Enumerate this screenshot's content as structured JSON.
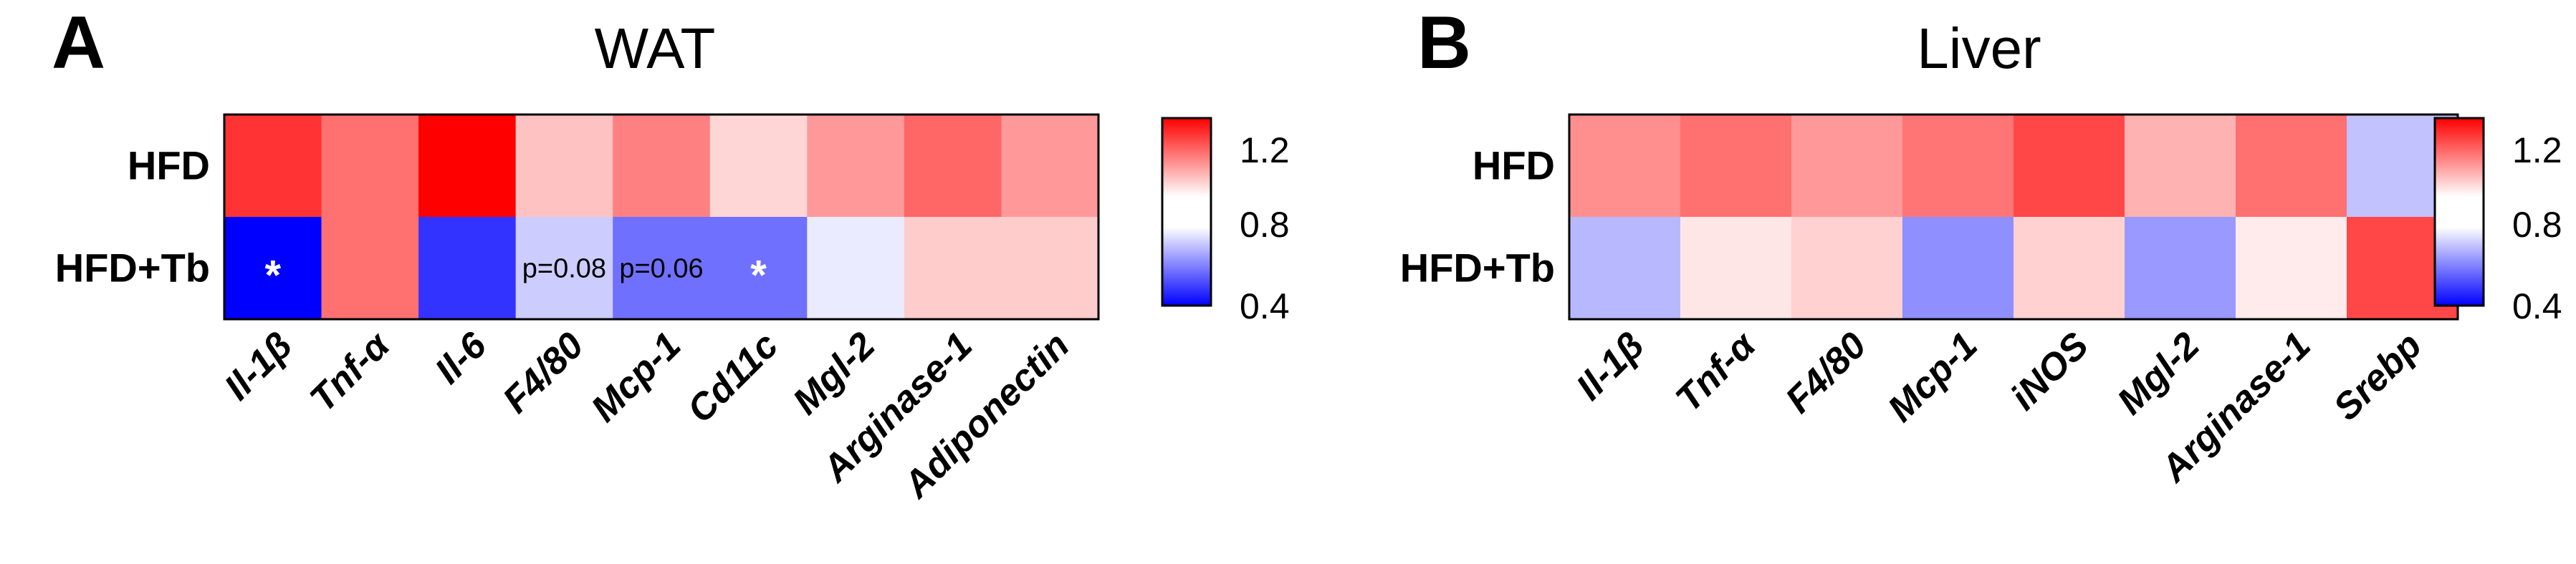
{
  "panels": [
    {
      "letter": "A",
      "title": "WAT"
    },
    {
      "letter": "B",
      "title": "Liver"
    }
  ],
  "colorscale": {
    "low_color": "#0000ff",
    "mid_color": "#ffffff",
    "high_color": "#ff0000",
    "min": 0.4,
    "mid": 0.9,
    "max": 1.4,
    "ticks": [
      "1.2",
      "0.8",
      "0.4"
    ]
  },
  "chart_data": [
    {
      "type": "heatmap",
      "title": "WAT",
      "rows": [
        "HFD",
        "HFD+Tb"
      ],
      "columns": [
        "Il-1β",
        "Tnf-α",
        "Il-6",
        "F4/80",
        "Mcp-1",
        "Cd11c",
        "Mgl-2",
        "Arginase-1",
        "Adiponectin"
      ],
      "values": [
        [
          1.3,
          1.18,
          1.4,
          1.02,
          1.15,
          0.98,
          1.1,
          1.2,
          1.1
        ],
        [
          0.4,
          1.18,
          0.5,
          0.8,
          0.62,
          0.62,
          0.86,
          1.0,
          1.0
        ]
      ],
      "annotations": [
        {
          "row": 1,
          "col": 0,
          "text": "*"
        },
        {
          "row": 1,
          "col": 3,
          "text": "p=0.08"
        },
        {
          "row": 1,
          "col": 4,
          "text": "p=0.06"
        },
        {
          "row": 1,
          "col": 5,
          "text": "*"
        }
      ],
      "colorbar_ticks": [
        1.2,
        0.8,
        0.4
      ],
      "range": [
        0.4,
        1.4
      ]
    },
    {
      "type": "heatmap",
      "title": "Liver",
      "rows": [
        "HFD",
        "HFD+Tb"
      ],
      "columns": [
        "Il-1β",
        "Tnf-α",
        "F4/80",
        "Mcp-1",
        "iNOS",
        "Mgl-2",
        "Arginase-1",
        "Srebp"
      ],
      "values": [
        [
          1.12,
          1.18,
          1.1,
          1.17,
          1.26,
          1.05,
          1.18,
          0.78
        ],
        [
          0.76,
          0.95,
          0.99,
          0.68,
          0.99,
          0.7,
          0.94,
          1.26
        ]
      ],
      "annotations": [],
      "colorbar_ticks": [
        1.2,
        0.8,
        0.4
      ],
      "range": [
        0.4,
        1.4
      ]
    }
  ]
}
